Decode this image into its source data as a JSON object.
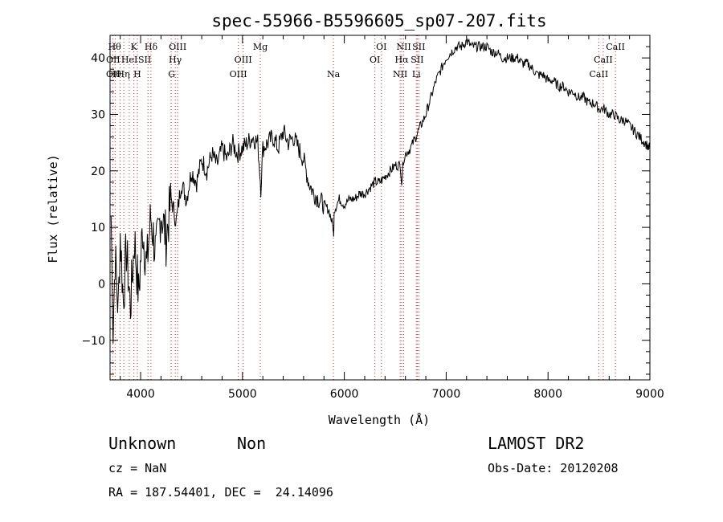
{
  "chart_data": {
    "type": "line",
    "title": "spec-55966-B5596605_sp07-207.fits",
    "xlabel": "Wavelength (Å)",
    "ylabel": "Flux (relative)",
    "xlim": [
      3700,
      9000
    ],
    "ylim": [
      -17,
      44
    ],
    "x_ticks": [
      4000,
      5000,
      6000,
      7000,
      8000,
      9000
    ],
    "y_ticks": [
      -10,
      0,
      10,
      20,
      30,
      40
    ],
    "y_tick_labels": [
      "−10",
      "0",
      "10",
      "20",
      "30",
      "40"
    ],
    "grid": false,
    "series": [
      {
        "x": [
          3710,
          3730,
          3750,
          3780,
          3800,
          3830,
          3860,
          3900,
          3940,
          3980,
          4020,
          4060,
          4100,
          4150,
          4200,
          4250,
          4300,
          4350,
          4400,
          4450,
          4500,
          4550,
          4600,
          4650,
          4700,
          4750,
          4800,
          4850,
          4900,
          4950,
          5000,
          5050,
          5100,
          5150,
          5170,
          5180,
          5200,
          5250,
          5300,
          5350,
          5400,
          5450,
          5500,
          5550,
          5600,
          5650,
          5700,
          5750,
          5800,
          5850,
          5890,
          5895,
          5900,
          5950,
          6000,
          6050,
          6100,
          6150,
          6200,
          6250,
          6300,
          6350,
          6400,
          6450,
          6500,
          6550,
          6563,
          6580,
          6600,
          6650,
          6700,
          6750,
          6800,
          6850,
          6900,
          6950,
          7000,
          7050,
          7100,
          7150,
          7200,
          7250,
          7300,
          7350,
          7400,
          7450,
          7500,
          7550,
          7600,
          7650,
          7700,
          7750,
          7800,
          7850,
          7900,
          7950,
          8000,
          8050,
          8100,
          8150,
          8200,
          8250,
          8300,
          8350,
          8400,
          8450,
          8500,
          8550,
          8600,
          8650,
          8700,
          8750,
          8800,
          8850,
          8900,
          8950,
          9000
        ],
        "y": [
          12,
          -8,
          5,
          -5,
          9,
          -3,
          6,
          -4,
          8,
          -2,
          10,
          3,
          12,
          5,
          13,
          8,
          15,
          11,
          18,
          15,
          20,
          18,
          22,
          20,
          23,
          21,
          24,
          22,
          25,
          23,
          24,
          25,
          26,
          25,
          20,
          17,
          24,
          25,
          26,
          24,
          27,
          25,
          26,
          24,
          22,
          18,
          16,
          15,
          14,
          13,
          10,
          8,
          13,
          15,
          14,
          15,
          15,
          16,
          16,
          17,
          18,
          18,
          19,
          20,
          21,
          21,
          18,
          22,
          23,
          24,
          26,
          28,
          30,
          33,
          36,
          38,
          40,
          41,
          42,
          42,
          43,
          42,
          42,
          42,
          42,
          41,
          41,
          40,
          40,
          40,
          40,
          39,
          39,
          38,
          37,
          37,
          36,
          36,
          35,
          35,
          34,
          34,
          33,
          33,
          32,
          32,
          31,
          31,
          30,
          30,
          29,
          29,
          28,
          27,
          26,
          25,
          24
        ]
      }
    ],
    "annotations": [
      {
        "x": 3745,
        "row": 0,
        "text": "Hθ"
      },
      {
        "x": 3730,
        "row": 1,
        "text": "OII"
      },
      {
        "x": 3730,
        "row": 2,
        "text": "OII"
      },
      {
        "x": 3745,
        "row": 2,
        "text": "Hθ"
      },
      {
        "x": 3830,
        "row": 2,
        "text": "Hη"
      },
      {
        "x": 3890,
        "row": 1,
        "text": "HeI"
      },
      {
        "x": 3934,
        "row": 0,
        "text": "K"
      },
      {
        "x": 3968,
        "row": 2,
        "text": "H"
      },
      {
        "x": 4040,
        "row": 1,
        "text": "SII"
      },
      {
        "x": 4102,
        "row": 0,
        "text": "Hδ"
      },
      {
        "x": 4340,
        "row": 1,
        "text": "Hγ"
      },
      {
        "x": 4364,
        "row": 0,
        "text": "OIII"
      },
      {
        "x": 4305,
        "row": 2,
        "text": "G"
      },
      {
        "x": 4959,
        "row": 2,
        "text": "OIII"
      },
      {
        "x": 5007,
        "row": 1,
        "text": "OIII"
      },
      {
        "x": 5175,
        "row": 0,
        "text": "Mg"
      },
      {
        "x": 5893,
        "row": 2,
        "text": "Na"
      },
      {
        "x": 6300,
        "row": 1,
        "text": "OI"
      },
      {
        "x": 6364,
        "row": 0,
        "text": "OI"
      },
      {
        "x": 6548,
        "row": 2,
        "text": "NII"
      },
      {
        "x": 6563,
        "row": 1,
        "text": "Hα"
      },
      {
        "x": 6583,
        "row": 0,
        "text": "NII"
      },
      {
        "x": 6707,
        "row": 2,
        "text": "Li"
      },
      {
        "x": 6716,
        "row": 1,
        "text": "SII"
      },
      {
        "x": 6731,
        "row": 0,
        "text": "SII"
      },
      {
        "x": 8498,
        "row": 2,
        "text": "CaII"
      },
      {
        "x": 8542,
        "row": 1,
        "text": "CaII"
      },
      {
        "x": 8662,
        "row": 0,
        "text": "CaII"
      }
    ],
    "line_markers": [
      3727,
      3750,
      3798,
      3835,
      3889,
      3934,
      3968,
      4072,
      4102,
      4300,
      4340,
      4363,
      4959,
      5007,
      5175,
      5893,
      6300,
      6364,
      6548,
      6563,
      6583,
      6707,
      6716,
      6731,
      8498,
      8542,
      8662
    ]
  },
  "info": {
    "class": "Unknown",
    "subclass": "Non",
    "cz": "cz = NaN",
    "radec": "RA = 187.54401, DEC =  24.14096",
    "survey": "LAMOST DR2",
    "obsdate": "Obs-Date: 20120208"
  }
}
